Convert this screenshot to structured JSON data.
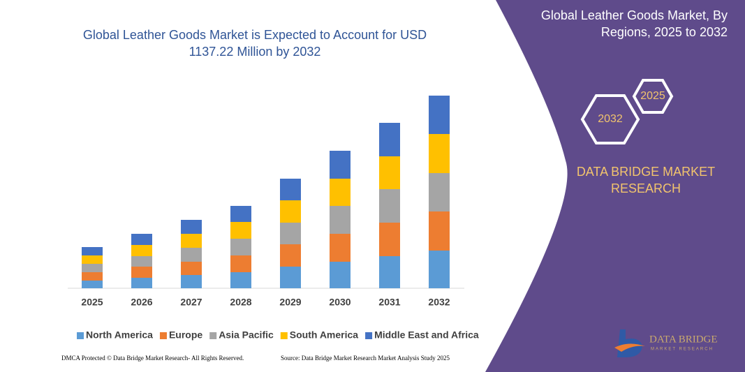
{
  "chart_data": {
    "type": "bar",
    "stacked": true,
    "title": "Global Leather Goods Market is Expected to Account for USD 1137.22 Million by 2032",
    "categories": [
      "2025",
      "2026",
      "2027",
      "2028",
      "2029",
      "2030",
      "2031",
      "2032"
    ],
    "series": [
      {
        "name": "North America",
        "color": "#5b9bd5",
        "values": [
          11,
          15,
          19,
          23,
          31,
          38,
          46,
          54
        ]
      },
      {
        "name": "Europe",
        "color": "#ed7d31",
        "values": [
          12,
          16,
          19,
          24,
          32,
          40,
          48,
          56
        ]
      },
      {
        "name": "Asia Pacific",
        "color": "#a5a5a5",
        "values": [
          12,
          15,
          20,
          24,
          31,
          40,
          48,
          55
        ]
      },
      {
        "name": "South America",
        "color": "#ffc000",
        "values": [
          12,
          16,
          20,
          24,
          32,
          39,
          47,
          56
        ]
      },
      {
        "name": "Middle East and Africa",
        "color": "#4472c4",
        "values": [
          12,
          16,
          20,
          23,
          31,
          40,
          48,
          55
        ]
      }
    ],
    "legend": "bottom"
  },
  "panel": {
    "title": "Global Leather Goods Market, By Regions, 2025 to 2032",
    "hex_small": "2025",
    "hex_large": "2032",
    "brand": "DATA BRIDGE MARKET RESEARCH"
  },
  "logo": {
    "name": "DATA BRIDGE",
    "tagline": "MARKET RESEARCH"
  },
  "footer": {
    "left": "DMCA Protected © Data Bridge Market Research- All Rights Reserved.",
    "right": "Source: Data Bridge Market Research Market Analysis Study 2025"
  }
}
